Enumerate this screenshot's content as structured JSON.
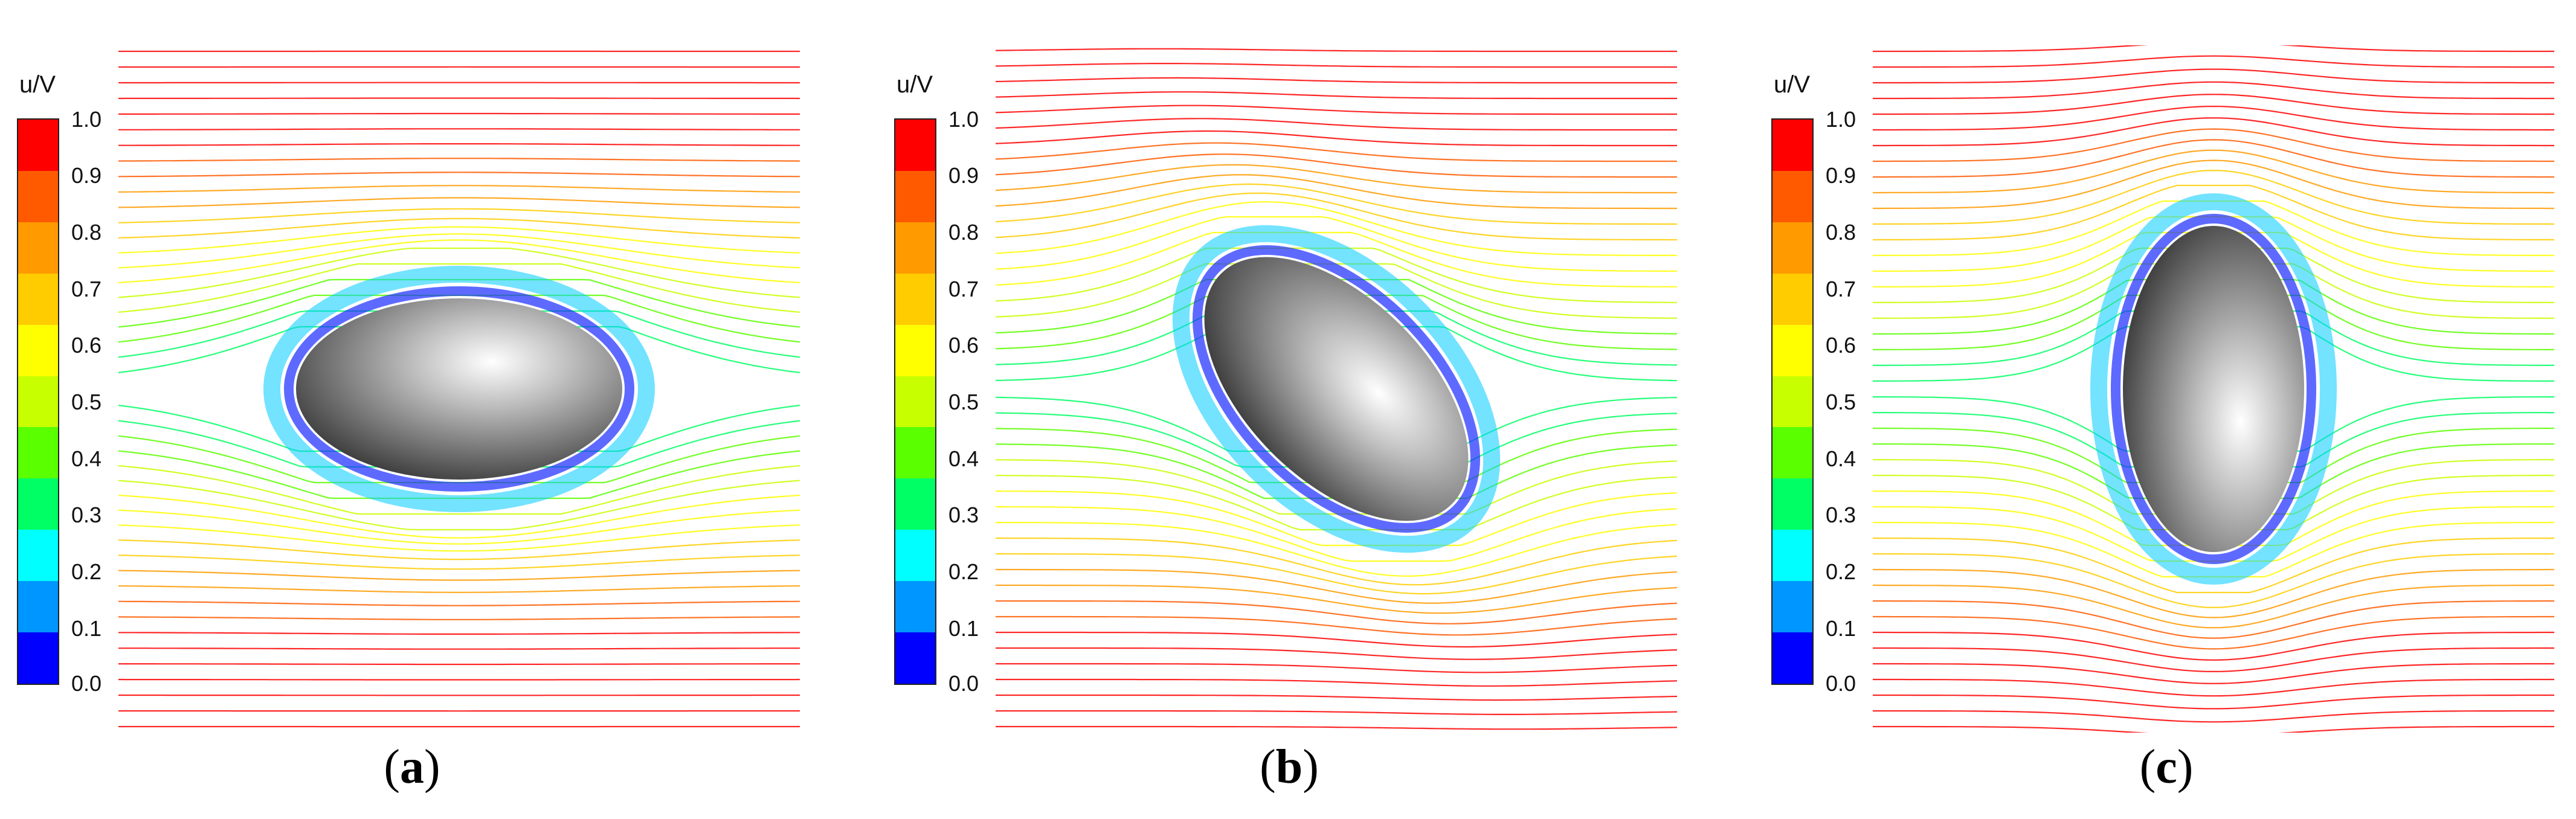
{
  "colorbar": {
    "title": "u/V",
    "ticks": [
      "1.0",
      "0.9",
      "0.8",
      "0.7",
      "0.6",
      "0.5",
      "0.4",
      "0.3",
      "0.2",
      "0.1",
      "0.0"
    ],
    "colors": [
      "#ff0000",
      "#ff5a00",
      "#ff9a00",
      "#ffcc00",
      "#ffff00",
      "#c8ff00",
      "#5aff00",
      "#00ff64",
      "#00ffff",
      "#0096ff",
      "#0000ff"
    ]
  },
  "panels": [
    {
      "label_open": "(",
      "label_letter": "a",
      "label_close": ")",
      "tilt_deg": 0
    },
    {
      "label_open": "(",
      "label_letter": "b",
      "label_close": ")",
      "tilt_deg": 45
    },
    {
      "label_open": "(",
      "label_letter": "c",
      "label_close": ")",
      "tilt_deg": 90
    }
  ]
}
